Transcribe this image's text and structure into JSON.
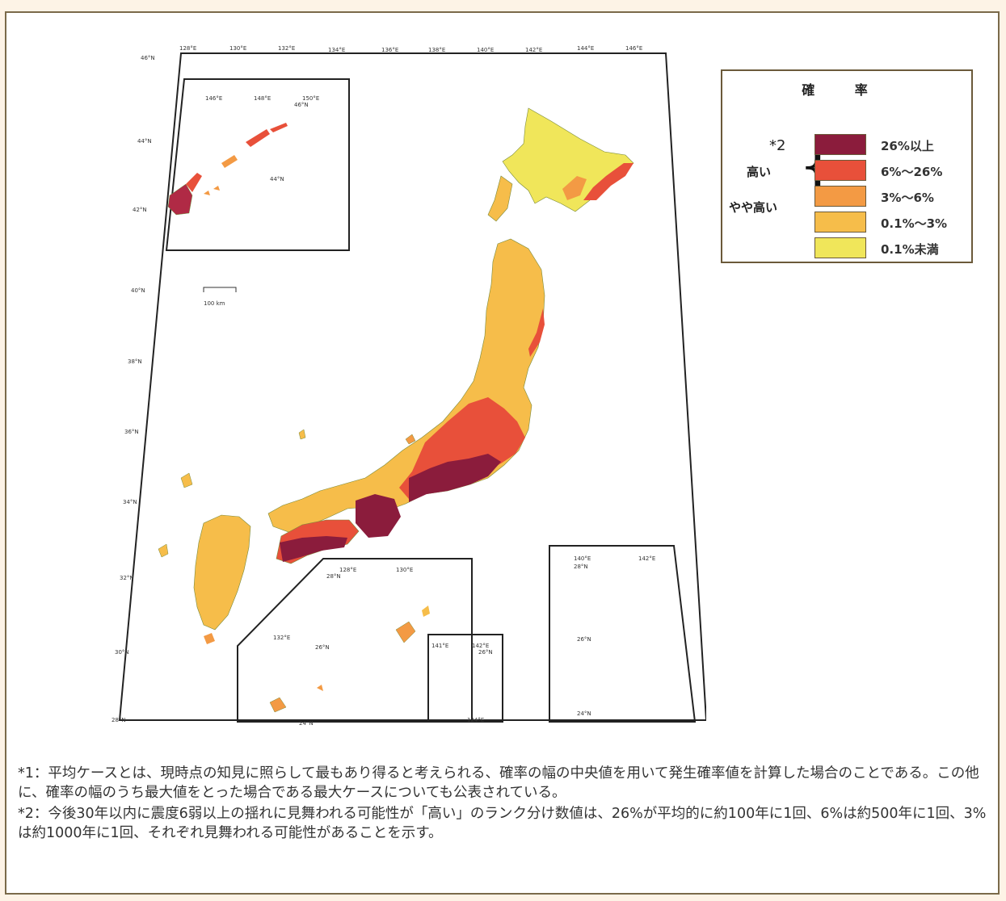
{
  "map": {
    "top_ticks": [
      "128°E",
      "130°E",
      "132°E",
      "134°E",
      "136°E",
      "138°E",
      "140°E",
      "142°E",
      "144°E",
      "146°E"
    ],
    "left_ticks": [
      "46°N",
      "44°N",
      "42°N",
      "40°N",
      "38°N",
      "36°N",
      "34°N",
      "32°N",
      "30°N",
      "28°N"
    ],
    "scale_label": "100 km",
    "inset_kuril": {
      "ticks": [
        "146°E",
        "148°E",
        "150°E",
        "46°N",
        "44°N"
      ]
    },
    "inset_south": {
      "ticks": [
        "128°E",
        "130°E",
        "28°N",
        "132°E",
        "26°N",
        "24°N"
      ]
    },
    "inset_daito": {
      "ticks": [
        "141°E",
        "142°E",
        "26°N",
        "124°E"
      ]
    },
    "inset_ogasawara": {
      "ticks": [
        "140°E",
        "142°E",
        "28°N",
        "26°N",
        "24°N"
      ]
    }
  },
  "legend": {
    "title": "確 率",
    "note_mark": "*2",
    "group_high": "高い",
    "group_mid": "やや高い",
    "items": [
      {
        "label": "26%以上",
        "color": "#8b1c3c"
      },
      {
        "label": "6%〜26%",
        "color": "#e8503a"
      },
      {
        "label": "3%〜6%",
        "color": "#f39a44"
      },
      {
        "label": "0.1%〜3%",
        "color": "#f6bd4a"
      },
      {
        "label": "0.1%未満",
        "color": "#f0e65a"
      }
    ]
  },
  "notes": [
    "*1：平均ケースとは、現時点の知見に照らして最もあり得ると考えられる、確率の幅の中央値を用いて発生確率値を計算した場合のことである。この他に、確率の幅のうち最大値をとった場合である最大ケースについても公表されている。",
    "*2：今後30年以内に震度6弱以上の揺れに見舞われる可能性が「高い」のランク分け数値は、26%が平均的に約100年に1回、6%は約500年に1回、3%は約1000年に1回、それぞれ見舞われる可能性があることを示す。"
  ]
}
